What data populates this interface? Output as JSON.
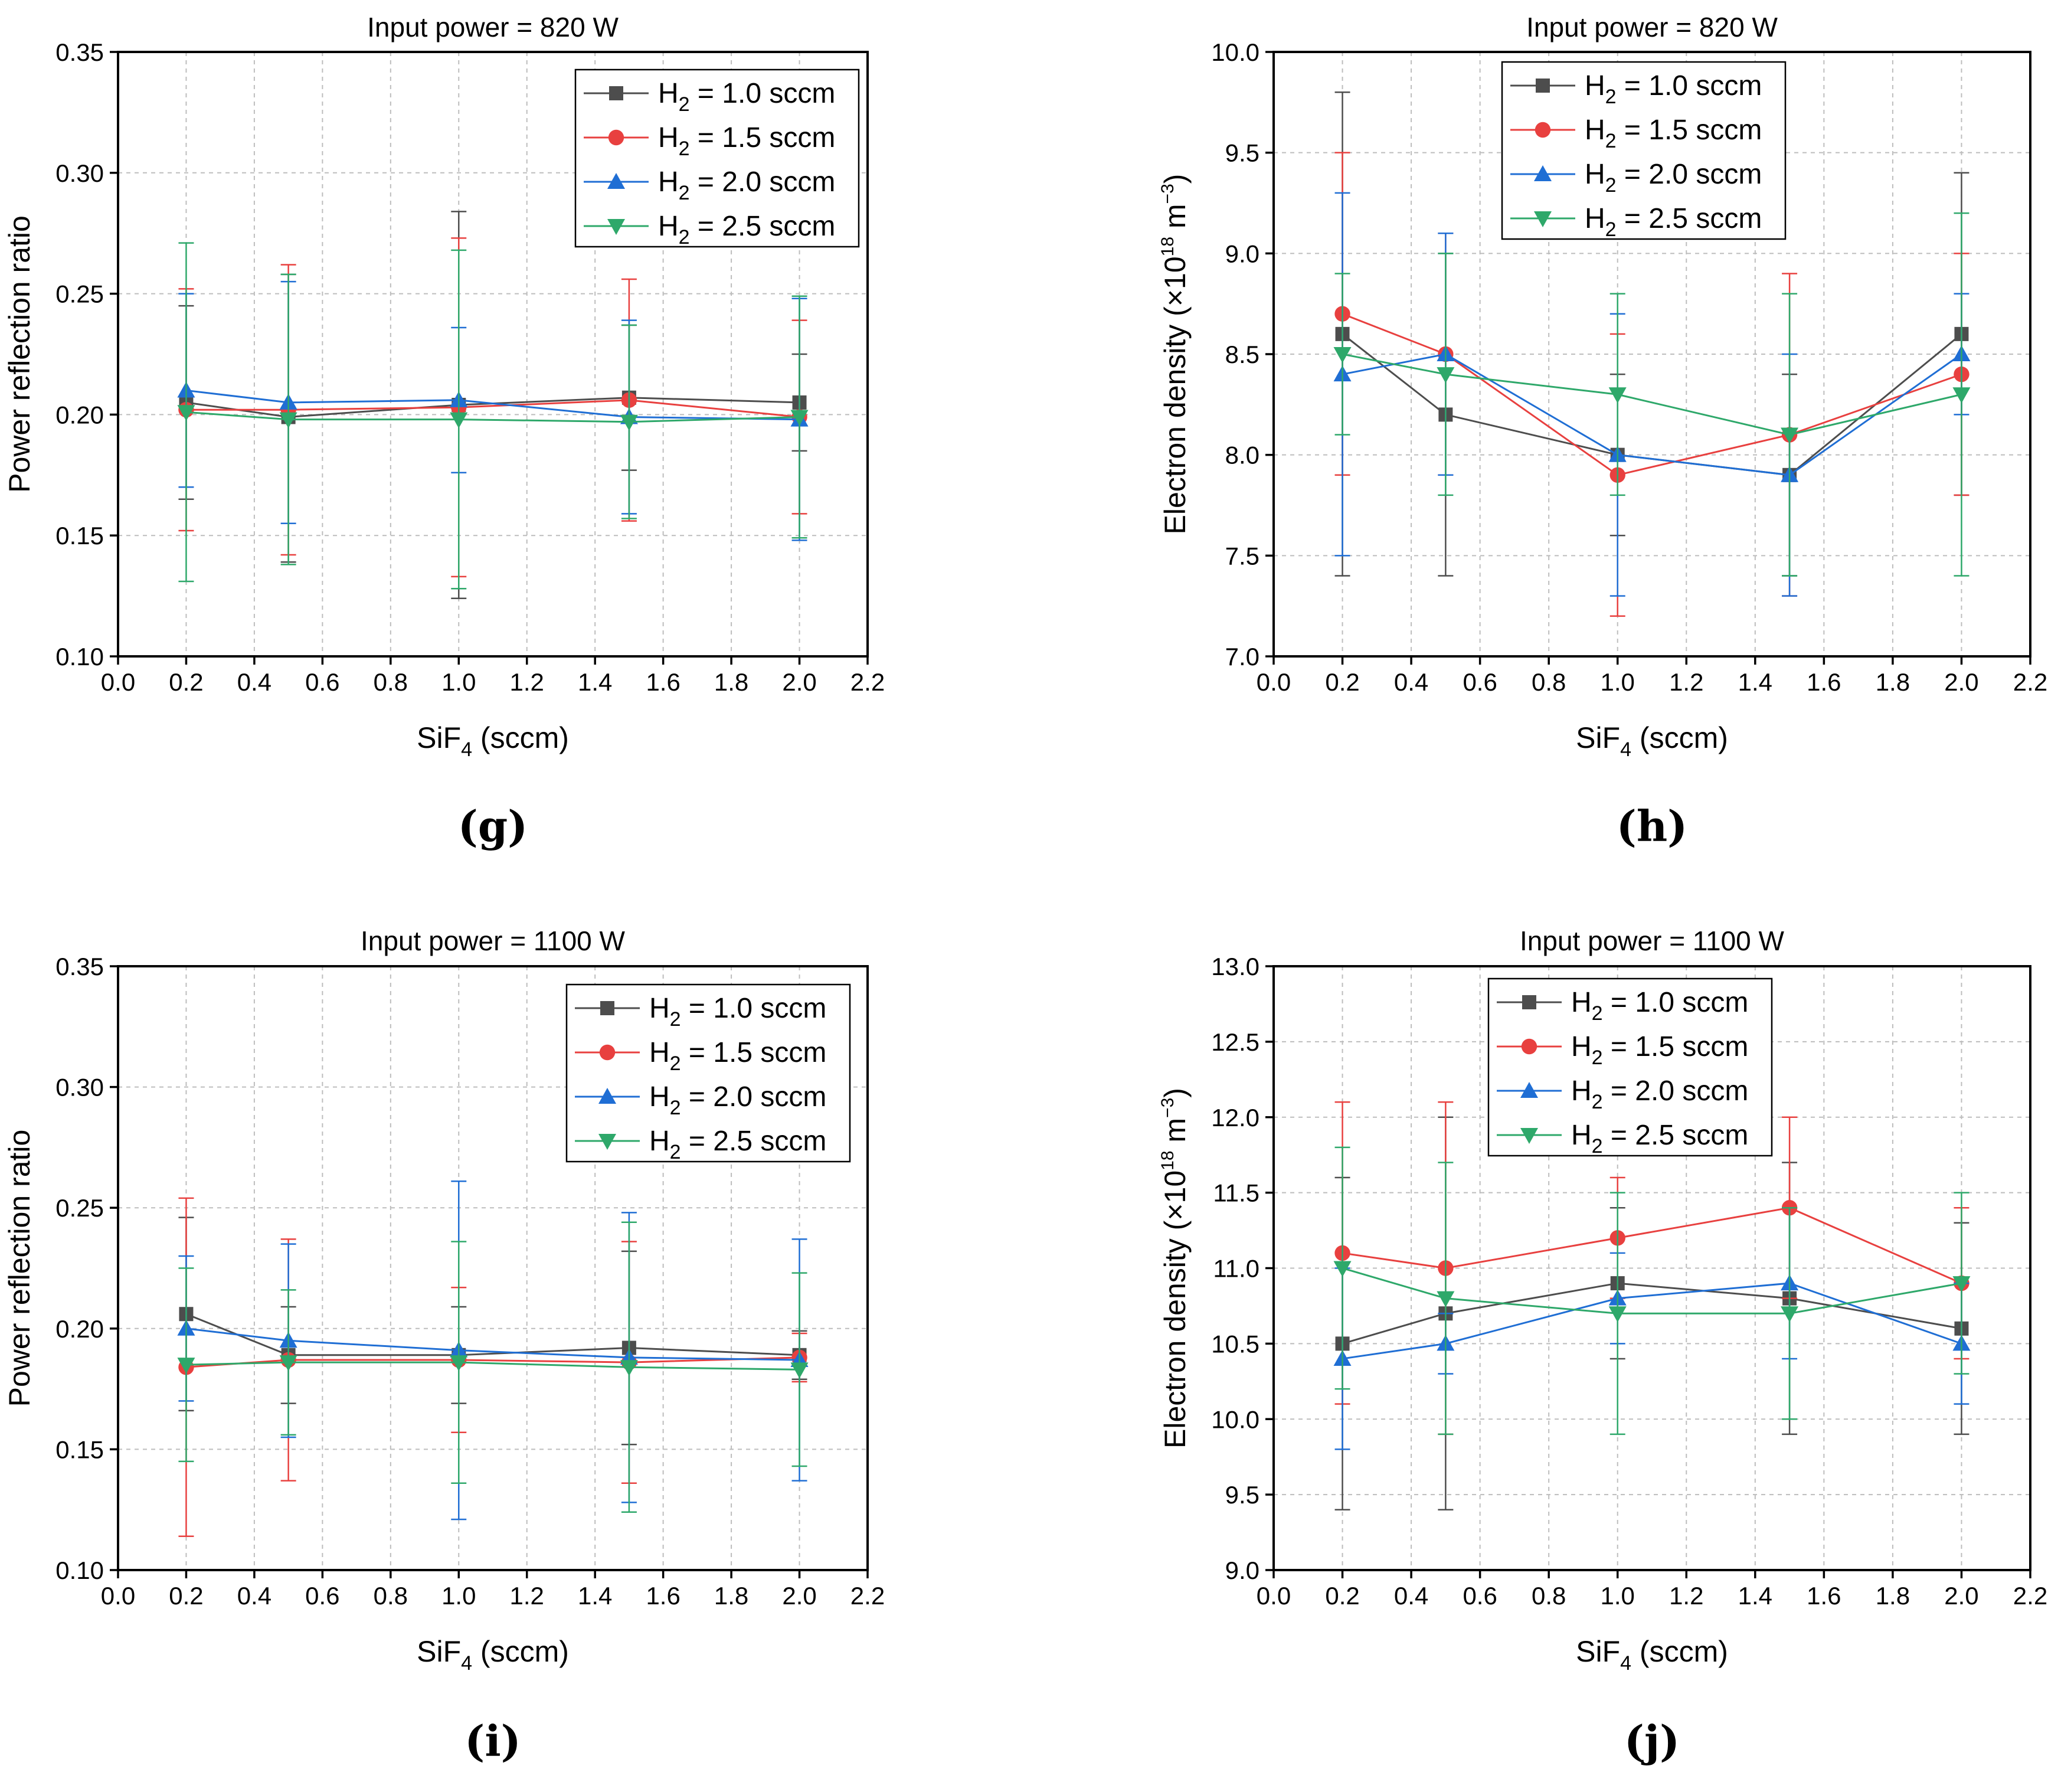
{
  "colors": {
    "h2_1_0": "#4d4d4d",
    "h2_1_5": "#e8403f",
    "h2_2_0": "#1f6ed4",
    "h2_2_5": "#2ea86a"
  },
  "chart_data": [
    {
      "id": "g",
      "panel_label": "(g)",
      "type": "line",
      "title": "Input power = 820 W",
      "xlabel": "SiF",
      "xlabel_sub": "4",
      "xlabel_tail": " (sccm)",
      "ylabel": "Power reflection ratio",
      "xlim": [
        0.0,
        2.2
      ],
      "ylim": [
        0.1,
        0.35
      ],
      "xticks": [
        "0.0",
        "0.2",
        "0.4",
        "0.6",
        "0.8",
        "1.0",
        "1.2",
        "1.4",
        "1.6",
        "1.8",
        "2.0",
        "2.2"
      ],
      "yticks": [
        "0.10",
        "0.15",
        "0.20",
        "0.25",
        "0.30",
        "0.35"
      ],
      "legend_position": "top-right",
      "x": [
        0.2,
        0.5,
        1.0,
        1.5,
        2.0
      ],
      "series": [
        {
          "name": "H",
          "name_sub": "2",
          "name_tail": " = 1.0 sccm",
          "marker": "square",
          "values": [
            0.205,
            0.199,
            0.204,
            0.207,
            0.205
          ],
          "err_low": [
            0.165,
            0.139,
            0.124,
            0.177,
            0.185
          ],
          "err_high": [
            0.245,
            0.258,
            0.284,
            0.237,
            0.225
          ]
        },
        {
          "name": "H",
          "name_sub": "2",
          "name_tail": " = 1.5 sccm",
          "marker": "circle",
          "values": [
            0.202,
            0.202,
            0.203,
            0.206,
            0.199
          ],
          "err_low": [
            0.152,
            0.142,
            0.133,
            0.156,
            0.159
          ],
          "err_high": [
            0.252,
            0.262,
            0.273,
            0.256,
            0.239
          ]
        },
        {
          "name": "H",
          "name_sub": "2",
          "name_tail": " = 2.0 sccm",
          "marker": "triangle-up",
          "values": [
            0.21,
            0.205,
            0.206,
            0.199,
            0.198
          ],
          "err_low": [
            0.17,
            0.155,
            0.176,
            0.159,
            0.148
          ],
          "err_high": [
            0.25,
            0.255,
            0.236,
            0.239,
            0.248
          ]
        },
        {
          "name": "H",
          "name_sub": "2",
          "name_tail": " = 2.5 sccm",
          "marker": "triangle-down",
          "values": [
            0.201,
            0.198,
            0.198,
            0.197,
            0.199
          ],
          "err_low": [
            0.131,
            0.138,
            0.128,
            0.157,
            0.149
          ],
          "err_high": [
            0.271,
            0.258,
            0.268,
            0.237,
            0.249
          ]
        }
      ]
    },
    {
      "id": "h",
      "panel_label": "(h)",
      "type": "line",
      "title": "Input power = 820 W",
      "xlabel": "SiF",
      "xlabel_sub": "4",
      "xlabel_tail": " (sccm)",
      "ylabel": "Electron density (×10",
      "ylabel_sup": "18",
      "ylabel_mid": " m",
      "ylabel_sup2": "−3",
      "ylabel_tail": ")",
      "xlim": [
        0.0,
        2.2
      ],
      "ylim": [
        7.0,
        10.0
      ],
      "xticks": [
        "0.0",
        "0.2",
        "0.4",
        "0.6",
        "0.8",
        "1.0",
        "1.2",
        "1.4",
        "1.6",
        "1.8",
        "2.0",
        "2.2"
      ],
      "yticks": [
        "7.0",
        "7.5",
        "8.0",
        "8.5",
        "9.0",
        "9.5",
        "10.0"
      ],
      "legend_position": "top-center",
      "x": [
        0.2,
        0.5,
        1.0,
        1.5,
        2.0
      ],
      "series": [
        {
          "name": "H",
          "name_sub": "2",
          "name_tail": " = 1.0 sccm",
          "marker": "square",
          "values": [
            8.6,
            8.2,
            8.0,
            7.9,
            8.6
          ],
          "err_low": [
            7.4,
            7.4,
            7.6,
            7.4,
            7.8
          ],
          "err_high": [
            9.8,
            9.0,
            8.4,
            8.4,
            9.4
          ]
        },
        {
          "name": "H",
          "name_sub": "2",
          "name_tail": " = 1.5 sccm",
          "marker": "circle",
          "values": [
            8.7,
            8.5,
            7.9,
            8.1,
            8.4
          ],
          "err_low": [
            7.9,
            7.9,
            7.2,
            7.3,
            7.8
          ],
          "err_high": [
            9.5,
            9.1,
            8.6,
            8.9,
            9.0
          ]
        },
        {
          "name": "H",
          "name_sub": "2",
          "name_tail": " = 2.0 sccm",
          "marker": "triangle-up",
          "values": [
            8.4,
            8.5,
            8.0,
            7.9,
            8.5
          ],
          "err_low": [
            7.5,
            7.9,
            7.3,
            7.3,
            8.2
          ],
          "err_high": [
            9.3,
            9.1,
            8.7,
            8.5,
            8.8
          ]
        },
        {
          "name": "H",
          "name_sub": "2",
          "name_tail": " = 2.5 sccm",
          "marker": "triangle-down",
          "values": [
            8.5,
            8.4,
            8.3,
            8.1,
            8.3
          ],
          "err_low": [
            8.1,
            7.8,
            7.8,
            7.4,
            7.4
          ],
          "err_high": [
            8.9,
            9.0,
            8.8,
            8.8,
            9.2
          ]
        }
      ]
    },
    {
      "id": "i",
      "panel_label": "(i)",
      "type": "line",
      "title": "Input power = 1100 W",
      "xlabel": "SiF",
      "xlabel_sub": "4",
      "xlabel_tail": " (sccm)",
      "ylabel": "Power reflection ratio",
      "xlim": [
        0.0,
        2.2
      ],
      "ylim": [
        0.1,
        0.35
      ],
      "xticks": [
        "0.0",
        "0.2",
        "0.4",
        "0.6",
        "0.8",
        "1.0",
        "1.2",
        "1.4",
        "1.6",
        "1.8",
        "2.0",
        "2.2"
      ],
      "yticks": [
        "0.10",
        "0.15",
        "0.20",
        "0.25",
        "0.30",
        "0.35"
      ],
      "legend_position": "top-right",
      "x": [
        0.2,
        0.5,
        1.0,
        1.5,
        2.0
      ],
      "series": [
        {
          "name": "H",
          "name_sub": "2",
          "name_tail": " = 1.0 sccm",
          "marker": "square",
          "values": [
            0.206,
            0.189,
            0.189,
            0.192,
            0.189
          ],
          "err_low": [
            0.166,
            0.169,
            0.169,
            0.152,
            0.179
          ],
          "err_high": [
            0.246,
            0.209,
            0.209,
            0.232,
            0.199
          ]
        },
        {
          "name": "H",
          "name_sub": "2",
          "name_tail": " = 1.5 sccm",
          "marker": "circle",
          "values": [
            0.184,
            0.187,
            0.187,
            0.186,
            0.188
          ],
          "err_low": [
            0.114,
            0.137,
            0.157,
            0.136,
            0.178
          ],
          "err_high": [
            0.254,
            0.237,
            0.217,
            0.236,
            0.198
          ]
        },
        {
          "name": "H",
          "name_sub": "2",
          "name_tail": " = 2.0 sccm",
          "marker": "triangle-up",
          "values": [
            0.2,
            0.195,
            0.191,
            0.188,
            0.187
          ],
          "err_low": [
            0.17,
            0.155,
            0.121,
            0.128,
            0.137
          ],
          "err_high": [
            0.23,
            0.235,
            0.261,
            0.248,
            0.237
          ]
        },
        {
          "name": "H",
          "name_sub": "2",
          "name_tail": " = 2.5 sccm",
          "marker": "triangle-down",
          "values": [
            0.185,
            0.186,
            0.186,
            0.184,
            0.183
          ],
          "err_low": [
            0.145,
            0.156,
            0.136,
            0.124,
            0.143
          ],
          "err_high": [
            0.225,
            0.216,
            0.236,
            0.244,
            0.223
          ]
        }
      ]
    },
    {
      "id": "j",
      "panel_label": "(j)",
      "type": "line",
      "title": "Input power = 1100 W",
      "xlabel": "SiF",
      "xlabel_sub": "4",
      "xlabel_tail": " (sccm)",
      "ylabel": "Electron density (×10",
      "ylabel_sup": "18",
      "ylabel_mid": " m",
      "ylabel_sup2": "−3",
      "ylabel_tail": ")",
      "xlim": [
        0.0,
        2.2
      ],
      "ylim": [
        9.0,
        13.0
      ],
      "xticks": [
        "0.0",
        "0.2",
        "0.4",
        "0.6",
        "0.8",
        "1.0",
        "1.2",
        "1.4",
        "1.6",
        "1.8",
        "2.0",
        "2.2"
      ],
      "yticks": [
        "9.0",
        "9.5",
        "10.0",
        "10.5",
        "11.0",
        "11.5",
        "12.0",
        "12.5",
        "13.0"
      ],
      "legend_position": "top-center",
      "x": [
        0.2,
        0.5,
        1.0,
        1.5,
        2.0
      ],
      "series": [
        {
          "name": "H",
          "name_sub": "2",
          "name_tail": " = 1.0 sccm",
          "marker": "square",
          "values": [
            10.5,
            10.7,
            10.9,
            10.8,
            10.6
          ],
          "err_low": [
            9.4,
            9.4,
            10.4,
            9.9,
            9.9
          ],
          "err_high": [
            11.6,
            12.0,
            11.4,
            11.7,
            11.3
          ]
        },
        {
          "name": "H",
          "name_sub": "2",
          "name_tail": " = 1.5 sccm",
          "marker": "circle",
          "values": [
            11.1,
            11.0,
            11.2,
            11.4,
            10.9
          ],
          "err_low": [
            10.1,
            9.9,
            10.8,
            10.8,
            10.4
          ],
          "err_high": [
            12.1,
            12.1,
            11.6,
            12.0,
            11.4
          ]
        },
        {
          "name": "H",
          "name_sub": "2",
          "name_tail": " = 2.0 sccm",
          "marker": "triangle-up",
          "values": [
            10.4,
            10.5,
            10.8,
            10.9,
            10.5
          ],
          "err_low": [
            9.8,
            10.3,
            10.5,
            10.4,
            10.1
          ],
          "err_high": [
            11.0,
            10.7,
            11.1,
            11.4,
            10.9
          ]
        },
        {
          "name": "H",
          "name_sub": "2",
          "name_tail": " = 2.5 sccm",
          "marker": "triangle-down",
          "values": [
            11.0,
            10.8,
            10.7,
            10.7,
            10.9
          ],
          "err_low": [
            10.2,
            9.9,
            9.9,
            10.0,
            10.3
          ],
          "err_high": [
            11.8,
            11.7,
            11.5,
            11.4,
            11.5
          ]
        }
      ]
    }
  ]
}
